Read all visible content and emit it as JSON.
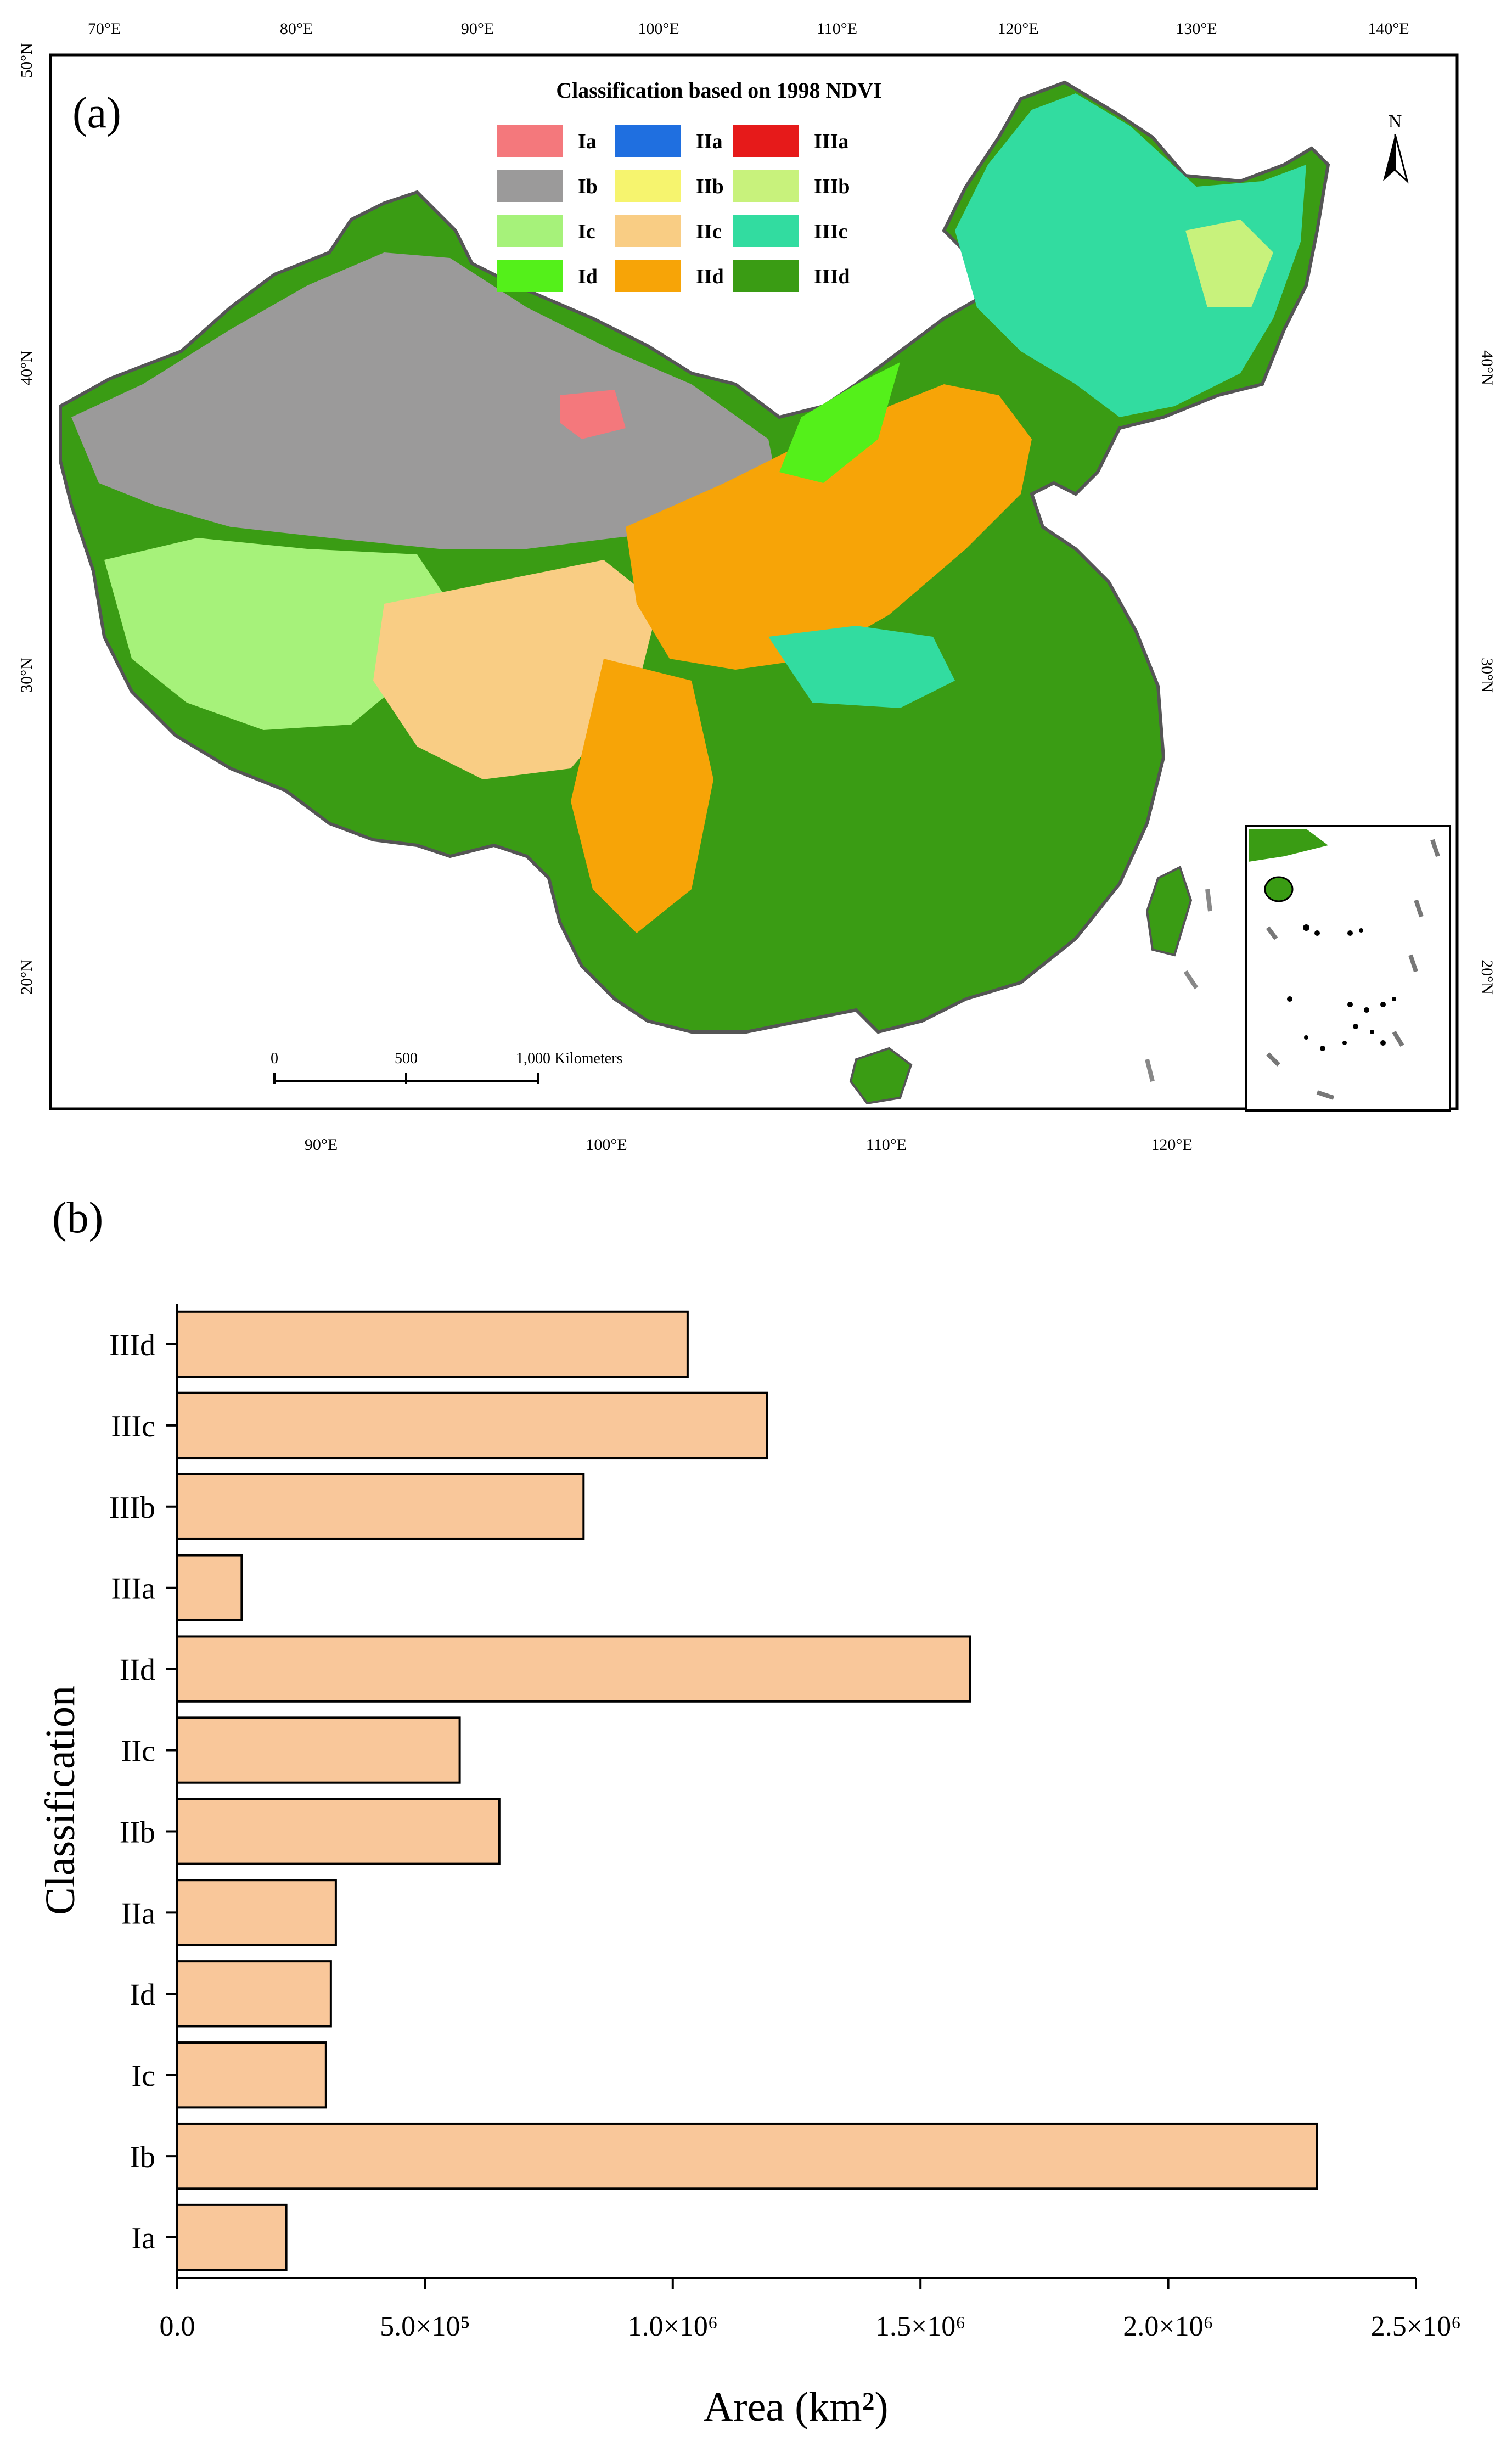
{
  "panel_a": {
    "label": "(a)",
    "legend_title": "Classification based on 1998 NDVI",
    "legend": [
      {
        "label": "Ia",
        "color": "#f4787c"
      },
      {
        "label": "IIa",
        "color": "#1f6fe0"
      },
      {
        "label": "IIIa",
        "color": "#e61a1a"
      },
      {
        "label": "Ib",
        "color": "#9b9a9a"
      },
      {
        "label": "IIb",
        "color": "#f6f46e"
      },
      {
        "label": "IIIb",
        "color": "#c8f27c"
      },
      {
        "label": "Ic",
        "color": "#a6f27a"
      },
      {
        "label": "IIc",
        "color": "#f9cd84"
      },
      {
        "label": "IIIc",
        "color": "#32dca0"
      },
      {
        "label": "Id",
        "color": "#54f01a"
      },
      {
        "label": "IId",
        "color": "#f7a407"
      },
      {
        "label": "IIId",
        "color": "#3a9c14"
      }
    ],
    "north_label": "N",
    "top_ticks": [
      "70°E",
      "80°E",
      "90°E",
      "100°E",
      "110°E",
      "120°E",
      "130°E",
      "140°E"
    ],
    "bottom_ticks": [
      "90°E",
      "100°E",
      "110°E",
      "120°E"
    ],
    "left_ticks": [
      "50°N",
      "40°N",
      "30°N",
      "20°N"
    ],
    "right_ticks": [
      "40°N",
      "30°N",
      "20°N"
    ],
    "scale_labels": [
      "0",
      "500",
      "1,000 Kilometers"
    ]
  },
  "chart_data": {
    "type": "bar",
    "orientation": "horizontal",
    "panel_label": "(b)",
    "categories": [
      "Ia",
      "Ib",
      "Ic",
      "Id",
      "IIa",
      "IIb",
      "IIc",
      "IId",
      "IIIa",
      "IIIb",
      "IIIc",
      "IIId"
    ],
    "values": [
      220000,
      2300000,
      300000,
      310000,
      320000,
      650000,
      570000,
      1600000,
      130000,
      820000,
      1190000,
      1030000
    ],
    "xlabel": "Area (km²)",
    "ylabel": "Classification",
    "xlim": [
      0,
      2500000
    ],
    "xticks": [
      {
        "value": 0,
        "label": "0.0"
      },
      {
        "value": 500000,
        "label": "5.0×10⁵"
      },
      {
        "value": 1000000,
        "label": "1.0×10⁶"
      },
      {
        "value": 1500000,
        "label": "1.5×10⁶"
      },
      {
        "value": 2000000,
        "label": "2.0×10⁶"
      },
      {
        "value": 2500000,
        "label": "2.5×10⁶"
      }
    ],
    "bar_color": "#f9c79a",
    "grid": false
  }
}
